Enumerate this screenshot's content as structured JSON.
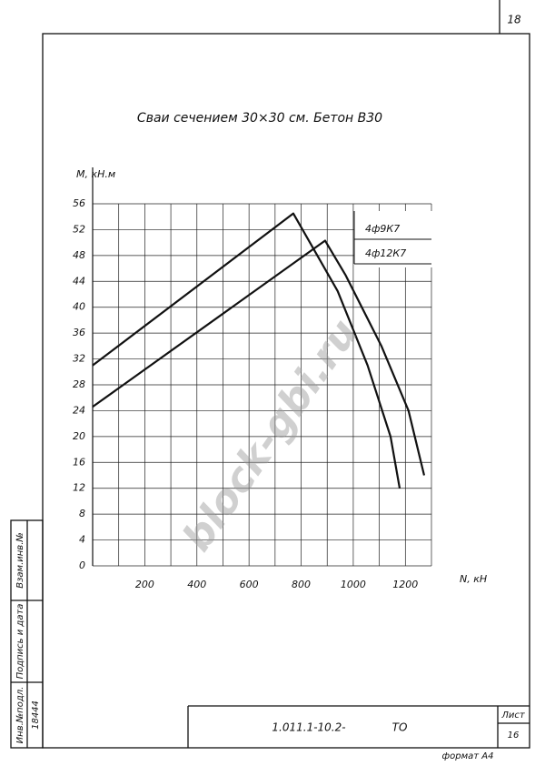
{
  "chart_data": {
    "type": "line",
    "title": "Сваи сечением 30×30 см. Бетон В30",
    "y_label": "M, кН.м",
    "x_label": "N, кН",
    "series": [
      {
        "name": "4ф9К7",
        "color": "#111111",
        "x": [
          0,
          770,
          940,
          1055,
          1143,
          1178
        ],
        "values": [
          31,
          54.5,
          42.5,
          31,
          20,
          12
        ]
      },
      {
        "name": "4ф12К7",
        "color": "#111111",
        "x": [
          0,
          892,
          970,
          1108,
          1212,
          1272
        ],
        "values": [
          24.6,
          50.3,
          45,
          34,
          24,
          14
        ]
      }
    ],
    "xlim": [
      0,
      1300
    ],
    "ylim": [
      0,
      56
    ],
    "xticks": [
      200,
      400,
      600,
      800,
      1000,
      1200
    ],
    "xgrid": [
      100,
      200,
      300,
      400,
      500,
      600,
      700,
      800,
      900,
      1000,
      1100,
      1200,
      1300
    ],
    "yticks": [
      0,
      4,
      8,
      12,
      16,
      20,
      24,
      28,
      32,
      36,
      40,
      44,
      48,
      52,
      56
    ],
    "grid": true
  },
  "sheet": {
    "page_corner": "18",
    "code": "1.011.1-10.2-",
    "doc": "ТО",
    "sheet_label": "Лист",
    "sheet_no": "16",
    "format": "формат А4",
    "side": [
      "Инв.№подл.",
      "Подпись и дата",
      "Взам.инв.№"
    ],
    "inv_no": "18444",
    "watermark": "block-gbi.ru"
  }
}
